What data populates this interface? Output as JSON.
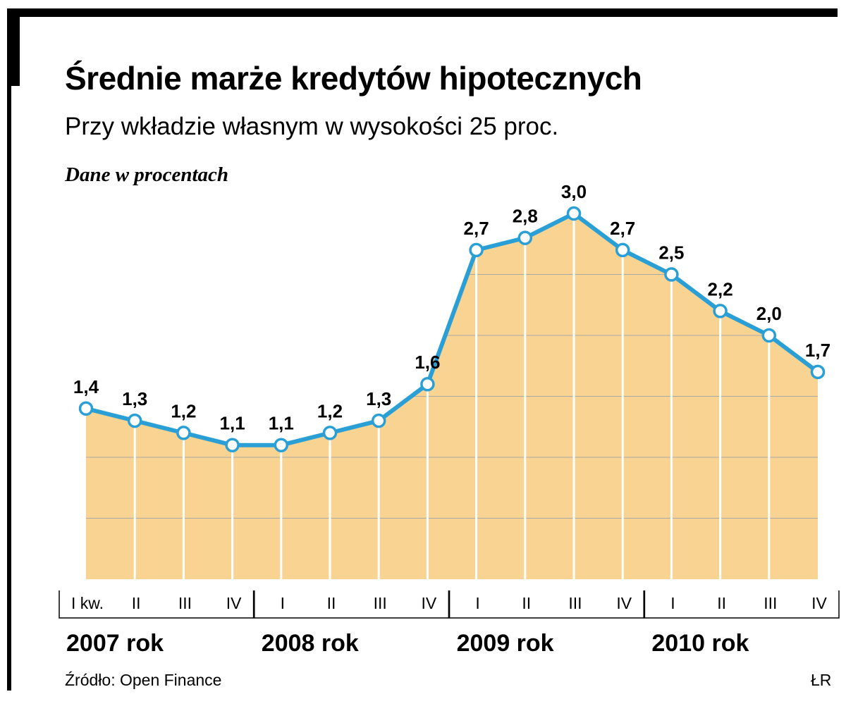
{
  "title": "Średnie marże kredytów hipotecznych",
  "subtitle": "Przy wkładzie własnym w wysokości 25 proc.",
  "units": "Dane w procentach",
  "source": "Źródło: Open Finance",
  "credit": "ŁR",
  "chart_data": {
    "type": "area",
    "title": "Średnie marże kredytów hipotecznych",
    "subtitle": "Przy wkładzie własnym w wysokości 25 proc.",
    "ylabel": "Dane w procentach",
    "ylim": [
      0,
      3.5
    ],
    "grid": true,
    "categories": [
      "I kw.",
      "II",
      "III",
      "IV",
      "I",
      "II",
      "III",
      "IV",
      "I",
      "II",
      "III",
      "IV",
      "I",
      "II",
      "III",
      "IV"
    ],
    "values": [
      1.4,
      1.3,
      1.2,
      1.1,
      1.1,
      1.2,
      1.3,
      1.6,
      2.7,
      2.8,
      3.0,
      2.7,
      2.5,
      2.2,
      2.0,
      1.7
    ],
    "value_labels": [
      "1,4",
      "1,3",
      "1,2",
      "1,1",
      "1,1",
      "1,2",
      "1,3",
      "1,6",
      "2,7",
      "2,8",
      "3,0",
      "2,7",
      "2,5",
      "2,2",
      "2,0",
      "1,7"
    ],
    "year_groups": [
      {
        "label": "2007 rok",
        "start": 0,
        "end": 3
      },
      {
        "label": "2008 rok",
        "start": 4,
        "end": 7
      },
      {
        "label": "2009 rok",
        "start": 8,
        "end": 11
      },
      {
        "label": "2010 rok",
        "start": 12,
        "end": 15
      }
    ],
    "colors": {
      "fill": "#f9d391",
      "line": "#2a9fd6",
      "marker_fill": "#ffffff",
      "grid": "#ffffff",
      "grid_h": "#a8a8a8",
      "axis": "#000000"
    }
  }
}
